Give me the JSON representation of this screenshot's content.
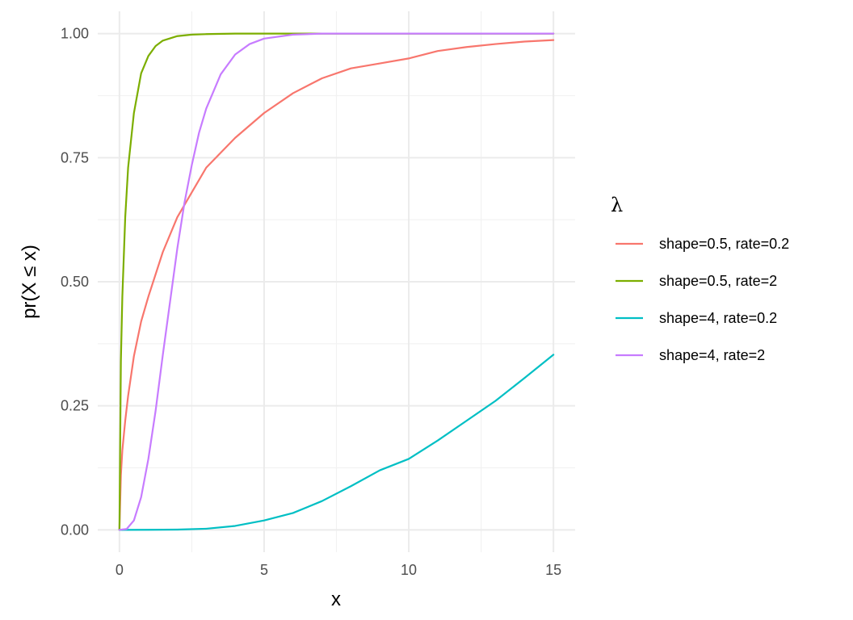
{
  "chart_data": {
    "type": "line",
    "xlabel": "x",
    "ylabel": "pr(X ≤ x)",
    "xlim": [
      -0.75,
      15.75
    ],
    "ylim": [
      -0.045,
      1.045
    ],
    "x_ticks": [
      0,
      5,
      10,
      15
    ],
    "x_tick_labels": [
      "0",
      "5",
      "10",
      "15"
    ],
    "x_minor_ticks": [
      2.5,
      7.5,
      12.5
    ],
    "y_ticks": [
      0,
      0.25,
      0.5,
      0.75,
      1
    ],
    "y_tick_labels": [
      "0.00",
      "0.25",
      "0.50",
      "0.75",
      "1.00"
    ],
    "y_minor_ticks": [
      0.125,
      0.375,
      0.625,
      0.875
    ],
    "grid": true,
    "legend": {
      "title": "λ",
      "position": "right"
    },
    "series": [
      {
        "name": "shape=0.5, rate=0.2",
        "color": "#F8766D",
        "x": [
          0,
          0.05,
          0.1,
          0.2,
          0.3,
          0.5,
          0.75,
          1,
          1.5,
          2,
          2.5,
          3,
          4,
          5,
          6,
          7,
          8,
          9,
          10,
          11,
          12,
          13,
          14,
          15
        ],
        "y": [
          0,
          0.11,
          0.16,
          0.22,
          0.27,
          0.35,
          0.42,
          0.47,
          0.56,
          0.63,
          0.68,
          0.73,
          0.79,
          0.84,
          0.88,
          0.91,
          0.93,
          0.94,
          0.95,
          0.965,
          0.973,
          0.979,
          0.984,
          0.987
        ]
      },
      {
        "name": "shape=0.5, rate=2",
        "color": "#7CAE00",
        "x": [
          0,
          0.05,
          0.1,
          0.2,
          0.3,
          0.5,
          0.75,
          1,
          1.25,
          1.5,
          2,
          2.5,
          3,
          4,
          5,
          6,
          8,
          10,
          15
        ],
        "y": [
          0,
          0.34,
          0.47,
          0.63,
          0.73,
          0.84,
          0.92,
          0.955,
          0.975,
          0.986,
          0.995,
          0.998,
          0.999,
          1,
          1,
          1,
          1,
          1,
          1
        ]
      },
      {
        "name": "shape=4, rate=0.2",
        "color": "#00BFC4",
        "x": [
          0,
          1,
          2,
          3,
          4,
          5,
          6,
          7,
          8,
          9,
          10,
          11,
          12,
          13,
          14,
          15
        ],
        "y": [
          0,
          0.0001,
          0.0006,
          0.0023,
          0.0079,
          0.019,
          0.034,
          0.058,
          0.088,
          0.12,
          0.143,
          0.18,
          0.22,
          0.26,
          0.306,
          0.353
        ]
      },
      {
        "name": "shape=4, rate=2",
        "color": "#C77CFF",
        "x": [
          0,
          0.25,
          0.5,
          0.75,
          1,
          1.25,
          1.5,
          1.75,
          2,
          2.25,
          2.5,
          2.75,
          3,
          3.5,
          4,
          4.5,
          5,
          6,
          7,
          8,
          10,
          15
        ],
        "y": [
          0,
          0.0018,
          0.019,
          0.066,
          0.143,
          0.24,
          0.353,
          0.46,
          0.567,
          0.66,
          0.735,
          0.8,
          0.849,
          0.918,
          0.958,
          0.979,
          0.99,
          0.998,
          1,
          1,
          1,
          1
        ]
      }
    ]
  }
}
